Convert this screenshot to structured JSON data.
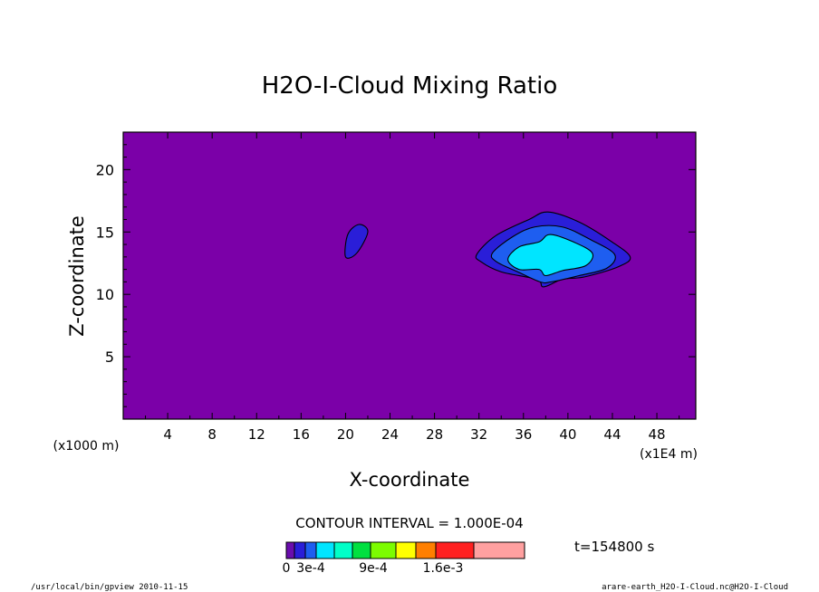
{
  "chart_data": {
    "type": "contour",
    "title": "H2O-I-Cloud Mixing Ratio",
    "xlabel": "X-coordinate",
    "ylabel": "Z-coordinate",
    "x_unit": "(x1E4 m)",
    "y_unit": "(x1000 m)",
    "xlim": [
      0,
      51.5
    ],
    "ylim": [
      0,
      23
    ],
    "x_ticks": [
      "4",
      "8",
      "12",
      "16",
      "20",
      "24",
      "28",
      "32",
      "36",
      "40",
      "44",
      "48"
    ],
    "x_tick_values": [
      4,
      8,
      12,
      16,
      20,
      24,
      28,
      32,
      36,
      40,
      44,
      48
    ],
    "y_ticks": [
      "5",
      "10",
      "15",
      "20"
    ],
    "y_tick_values": [
      5,
      10,
      15,
      20
    ],
    "contour_interval": "CONTOUR INTERVAL = 1.000E-04",
    "time_label": "t=154800 s",
    "colorbar": {
      "colors": [
        "#6a0dad",
        "#2a1ed8",
        "#1e5ef0",
        "#00e5ff",
        "#00ffc8",
        "#00e040",
        "#7cfc00",
        "#ffff00",
        "#ff7f00",
        "#ff2020",
        "#ffa0a0"
      ],
      "labels": [
        "0",
        "3e-4",
        "9e-4",
        "1.6e-3"
      ],
      "label_positions": [
        0,
        3,
        7,
        12
      ]
    },
    "background_color": "#7b00a8",
    "features": [
      {
        "name": "small-cloud-cell",
        "level": "1e-4",
        "color": "#2a1ed8",
        "outline": [
          [
            20.0,
            13.0
          ],
          [
            20.2,
            14.8
          ],
          [
            21.2,
            15.6
          ],
          [
            22.0,
            15.0
          ],
          [
            21.0,
            13.3
          ]
        ]
      },
      {
        "name": "main-cloud-level-1",
        "level": "1e-4",
        "color": "#2a1ed8",
        "outline": [
          [
            31.8,
            13.2
          ],
          [
            33.5,
            14.7
          ],
          [
            36.5,
            16.0
          ],
          [
            38.2,
            16.6
          ],
          [
            41.0,
            15.8
          ],
          [
            43.8,
            14.3
          ],
          [
            45.6,
            13.0
          ],
          [
            44.5,
            12.2
          ],
          [
            41.5,
            11.4
          ],
          [
            39.5,
            11.2
          ],
          [
            37.8,
            10.6
          ],
          [
            37.2,
            11.2
          ],
          [
            34.0,
            11.8
          ],
          [
            32.2,
            12.6
          ]
        ]
      },
      {
        "name": "main-cloud-level-2",
        "level": "2e-4",
        "color": "#1e5ef0",
        "outline": [
          [
            33.2,
            13.3
          ],
          [
            35.0,
            14.6
          ],
          [
            37.0,
            15.4
          ],
          [
            39.5,
            15.4
          ],
          [
            42.0,
            14.4
          ],
          [
            44.2,
            13.2
          ],
          [
            43.5,
            12.1
          ],
          [
            41.0,
            11.5
          ],
          [
            38.5,
            11.0
          ],
          [
            37.5,
            11.0
          ],
          [
            35.5,
            11.8
          ],
          [
            33.6,
            12.6
          ]
        ]
      },
      {
        "name": "main-cloud-level-3",
        "level": "3e-4",
        "color": "#00e5ff",
        "outline": [
          [
            34.6,
            12.8
          ],
          [
            35.6,
            13.8
          ],
          [
            37.4,
            14.2
          ],
          [
            38.4,
            14.8
          ],
          [
            40.5,
            14.2
          ],
          [
            42.2,
            13.3
          ],
          [
            41.6,
            12.3
          ],
          [
            39.5,
            11.9
          ],
          [
            38.0,
            11.5
          ],
          [
            37.4,
            12.0
          ],
          [
            35.6,
            12.0
          ]
        ]
      }
    ]
  },
  "footer": {
    "left": "/usr/local/bin/gpview  2010-11-15",
    "right": "arare-earth_H2O-I-Cloud.nc@H2O-I-Cloud"
  }
}
